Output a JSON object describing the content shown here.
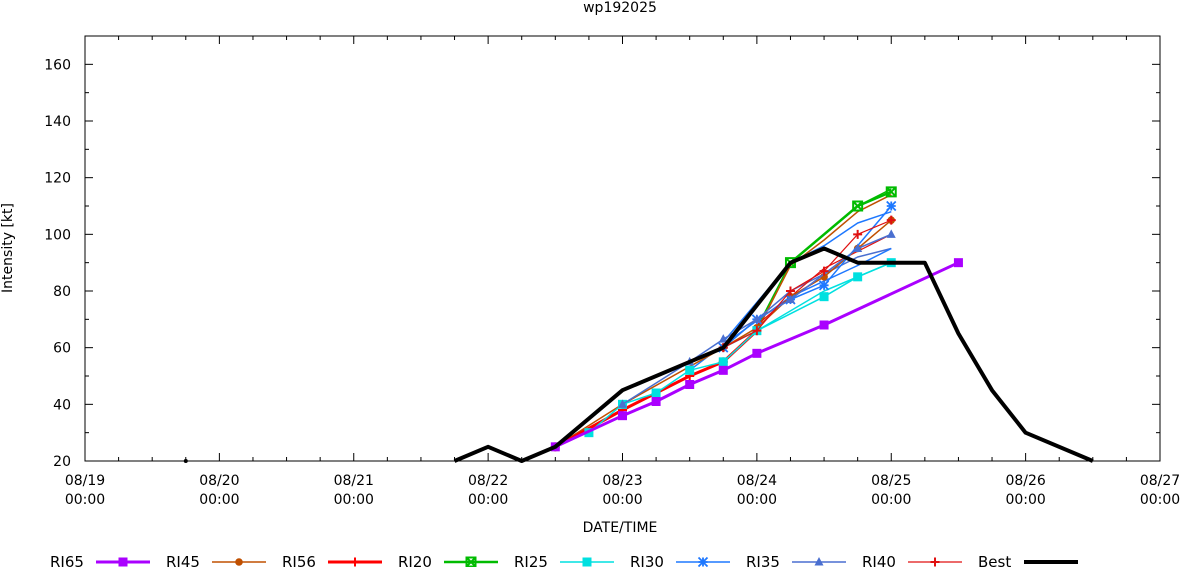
{
  "chart_data": {
    "type": "line",
    "title": "wp192025",
    "xlabel": "DATE/TIME",
    "ylabel": "Intensity [kt]",
    "ylim": [
      20,
      170
    ],
    "yticks": [
      20,
      40,
      60,
      80,
      100,
      120,
      140,
      160
    ],
    "x_unit": "hours since 08/19 00:00",
    "xlim": [
      0,
      192
    ],
    "xticks": [
      {
        "x": 0,
        "date": "08/19",
        "time": "00:00"
      },
      {
        "x": 24,
        "date": "08/20",
        "time": "00:00"
      },
      {
        "x": 48,
        "date": "08/21",
        "time": "00:00"
      },
      {
        "x": 72,
        "date": "08/22",
        "time": "00:00"
      },
      {
        "x": 96,
        "date": "08/23",
        "time": "00:00"
      },
      {
        "x": 120,
        "date": "08/24",
        "time": "00:00"
      },
      {
        "x": 144,
        "date": "08/25",
        "time": "00:00"
      },
      {
        "x": 168,
        "date": "08/26",
        "time": "00:00"
      },
      {
        "x": 192,
        "date": "08/27",
        "time": "00:00"
      }
    ],
    "series": [
      {
        "name": "RI65",
        "color": "#aa00ff",
        "marker": "square",
        "width": 3,
        "x": [
          84,
          96,
          102,
          108,
          114,
          120,
          132,
          156
        ],
        "values": [
          25,
          36,
          41,
          47,
          52,
          58,
          68,
          90
        ]
      },
      {
        "name": "RI45",
        "color": "#c05000",
        "marker": "circle",
        "width": 1.5,
        "x": [
          84,
          96,
          114,
          120,
          126,
          132,
          138,
          144
        ],
        "values": [
          25,
          40,
          60,
          67,
          78,
          85,
          95,
          105
        ]
      },
      {
        "name": "RI56",
        "color": "#ff0000",
        "marker": "plus",
        "width": 3,
        "x": [
          84,
          96,
          108,
          114,
          120
        ],
        "values": [
          25,
          38,
          50,
          55,
          66
        ]
      },
      {
        "name": "RI20",
        "color": "#00bb00",
        "marker": "square-x",
        "width": 2.5,
        "x": [
          126,
          138,
          144
        ],
        "values": [
          90,
          110,
          115
        ]
      },
      {
        "name": "RI25",
        "color": "#00e0e0",
        "marker": "square",
        "width": 1.5,
        "x": [
          90,
          96,
          102,
          108,
          114,
          120,
          132,
          138,
          144
        ],
        "values": [
          30,
          40,
          44,
          52,
          55,
          66,
          78,
          85,
          90
        ]
      },
      {
        "name": "RI30",
        "color": "#1e78ff",
        "marker": "star",
        "width": 1.5,
        "x": [
          114,
          120,
          126,
          132,
          144
        ],
        "values": [
          60,
          70,
          77,
          82,
          110
        ]
      },
      {
        "name": "RI35",
        "color": "#4a6fd0",
        "marker": "triangle",
        "width": 1.5,
        "x": [
          96,
          108,
          114,
          120,
          126,
          138,
          144
        ],
        "values": [
          40,
          55,
          63,
          70,
          77,
          95,
          100
        ]
      },
      {
        "name": "RI40",
        "color": "#e01010",
        "marker": "plus",
        "width": 1.2,
        "x": [
          114,
          120,
          126,
          132,
          138,
          144
        ],
        "values": [
          60,
          66,
          80,
          87,
          100,
          105
        ]
      },
      {
        "name": "Best",
        "color": "#000000",
        "marker": "none",
        "width": 4,
        "x": [
          66,
          72,
          78,
          84,
          90,
          96,
          114,
          126,
          132,
          138,
          150,
          156,
          162,
          168,
          180
        ],
        "values": [
          20,
          25,
          20,
          25,
          35,
          45,
          60,
          90,
          95,
          90,
          90,
          65,
          45,
          30,
          20
        ]
      }
    ],
    "extra_lines": [
      {
        "color": "#00bb00",
        "width": 1.5,
        "x": [
          120,
          126,
          132,
          138,
          144
        ],
        "values": [
          67,
          90,
          100,
          110,
          116
        ]
      },
      {
        "color": "#c05000",
        "width": 1.5,
        "x": [
          120,
          126,
          132,
          138,
          144
        ],
        "values": [
          66,
          89,
          98,
          108,
          114
        ]
      },
      {
        "color": "#1e78ff",
        "width": 1.5,
        "x": [
          114,
          126,
          132,
          138,
          144
        ],
        "values": [
          62,
          90,
          96,
          104,
          108
        ]
      },
      {
        "color": "#4a6fd0",
        "width": 1.5,
        "x": [
          114,
          126,
          132,
          138,
          144
        ],
        "values": [
          60,
          80,
          86,
          92,
          95
        ]
      },
      {
        "color": "#00e0e0",
        "width": 1.5,
        "x": [
          114,
          120,
          132,
          144
        ],
        "values": [
          60,
          66,
          80,
          90
        ]
      },
      {
        "color": "#1e78ff",
        "width": 1.5,
        "x": [
          108,
          114,
          126,
          138,
          144
        ],
        "values": [
          52,
          61,
          78,
          89,
          95
        ]
      },
      {
        "color": "#e01010",
        "width": 1.2,
        "x": [
          120,
          126,
          132,
          144
        ],
        "values": [
          68,
          78,
          88,
          100
        ]
      }
    ],
    "stray_markers": [
      {
        "x": 18,
        "value": 20,
        "color": "#000000"
      }
    ],
    "legend": [
      "RI65",
      "RI45",
      "RI56",
      "RI20",
      "RI25",
      "RI30",
      "RI35",
      "RI40",
      "Best"
    ],
    "legend_position": "bottom"
  }
}
